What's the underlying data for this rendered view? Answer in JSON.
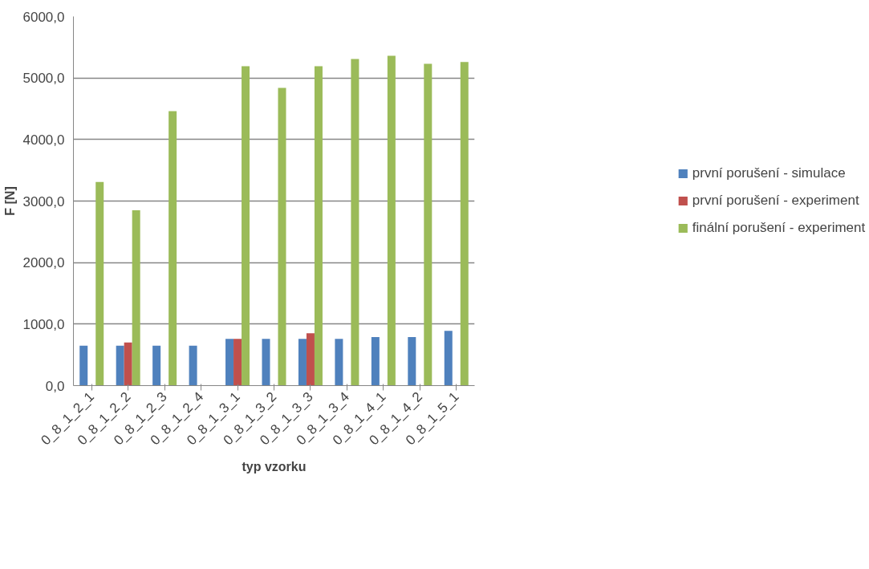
{
  "chart_data": {
    "type": "bar",
    "xlabel": "typ vzorku",
    "ylabel": "F [N]",
    "categories": [
      "0_8_1_2_1",
      "0_8_1_2_2",
      "0_8_1_2_3",
      "0_8_1_2_4",
      "0_8_1_3_1",
      "0_8_1_3_2",
      "0_8_1_3_3",
      "0_8_1_3_4",
      "0_8_1_4_1",
      "0_8_1_4_2",
      "0_8_1_5_1"
    ],
    "series": [
      {
        "name": "první porušení - simulace",
        "color": "#4f81bd",
        "values": [
          650,
          650,
          650,
          650,
          760,
          760,
          760,
          760,
          790,
          790,
          890
        ]
      },
      {
        "name": "první porušení - experiment",
        "color": "#c0504d",
        "values": [
          null,
          700,
          null,
          null,
          760,
          null,
          850,
          null,
          null,
          null,
          null
        ]
      },
      {
        "name": "finální porušení - experiment",
        "color": "#9bbb59",
        "values": [
          3310,
          2850,
          4460,
          null,
          5190,
          4840,
          5190,
          5310,
          5360,
          5230,
          5260
        ]
      }
    ],
    "ylim": [
      0,
      6000
    ],
    "yticks": [
      {
        "value": 0,
        "label": "0,0"
      },
      {
        "value": 1000,
        "label": "1000,0"
      },
      {
        "value": 2000,
        "label": "2000,0"
      },
      {
        "value": 3000,
        "label": "3000,0"
      },
      {
        "value": 4000,
        "label": "4000,0"
      },
      {
        "value": 5000,
        "label": "5000,0"
      },
      {
        "value": 6000,
        "label": "6000,0"
      }
    ],
    "grid": "y",
    "legend": "right"
  }
}
